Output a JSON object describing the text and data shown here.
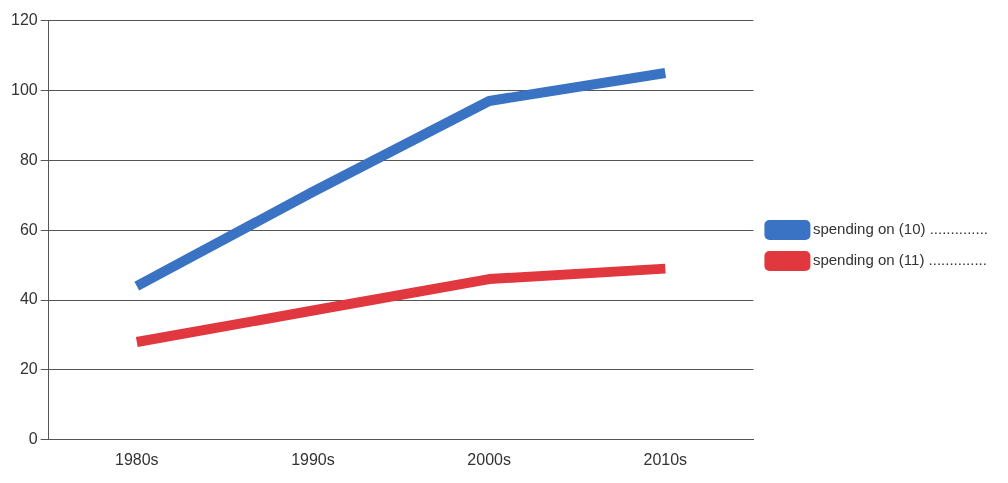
{
  "chart_data": {
    "type": "line",
    "categories": [
      "1980s",
      "1990s",
      "2000s",
      "2010s"
    ],
    "series": [
      {
        "name": "spending on (10) ..............",
        "color": "#3a72c4",
        "values": [
          44,
          71,
          97,
          105
        ]
      },
      {
        "name": "spending on (11) ..............",
        "color": "#e0383e",
        "values": [
          28,
          37,
          46,
          49
        ]
      }
    ],
    "ylim": [
      0,
      120
    ],
    "yticks": [
      0,
      20,
      40,
      60,
      80,
      100,
      120
    ],
    "grid": "y",
    "legend": "right",
    "marker": "none",
    "line_style": "solid"
  }
}
